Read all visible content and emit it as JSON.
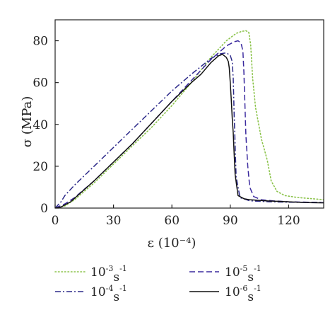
{
  "chart_data": {
    "type": "line",
    "xlabel": "ε (10⁻⁴)",
    "ylabel": "σ (MPa)",
    "xlim": [
      0,
      138
    ],
    "ylim": [
      0,
      90
    ],
    "xticks": [
      0,
      30,
      60,
      90,
      120
    ],
    "yticks": [
      0,
      20,
      40,
      60,
      80
    ],
    "grid": false,
    "legend_placement": "bottom",
    "series": [
      {
        "name": "10⁻³s⁻¹",
        "legend_base": "10",
        "legend_exp1": "-3",
        "legend_mid": "s",
        "legend_exp2": "-1",
        "color": "#8bc34a",
        "dash": "dot",
        "x": [
          0,
          5,
          10,
          20,
          30,
          40,
          50,
          60,
          70,
          80,
          88,
          93,
          96,
          98,
          99.5,
          100.5,
          101.5,
          103,
          106,
          109,
          111,
          114,
          118,
          125,
          132,
          138
        ],
        "y": [
          0,
          1,
          4,
          12,
          21,
          30,
          39,
          49,
          60,
          72,
          80,
          83.5,
          84.5,
          84.8,
          84,
          78,
          62,
          48,
          33,
          23,
          13,
          8,
          6,
          5,
          4.5,
          4
        ]
      },
      {
        "name": "10⁻⁴s⁻¹",
        "legend_base": "10",
        "legend_exp1": "-4",
        "legend_mid": "s",
        "legend_exp2": "-1",
        "color": "#2d2a8a",
        "dash": "dashdot",
        "x": [
          0,
          3,
          5,
          10,
          20,
          30,
          40,
          50,
          60,
          70,
          80,
          85,
          88,
          90,
          91,
          91.5,
          92,
          92.5,
          93,
          95,
          100,
          110,
          120,
          130,
          138
        ],
        "y": [
          0,
          3,
          6,
          11,
          20,
          29,
          38,
          47,
          56,
          64,
          71.5,
          73.8,
          74.2,
          73,
          70,
          62,
          45,
          30,
          15,
          5,
          3.5,
          3,
          2.8,
          2.7,
          2.7
        ]
      },
      {
        "name": "10⁻⁵s⁻¹",
        "legend_base": "10",
        "legend_exp1": "-5",
        "legend_mid": "s",
        "legend_exp2": "-1",
        "color": "#3b2a9e",
        "dash": "dash",
        "x": [
          0,
          5,
          10,
          20,
          30,
          40,
          50,
          60,
          70,
          80,
          88,
          92,
          94,
          95.5,
          96.5,
          97,
          97.5,
          98,
          99,
          100,
          102,
          106,
          112,
          120,
          130,
          138
        ],
        "y": [
          0,
          2,
          5,
          13,
          22,
          31,
          41,
          51,
          61,
          71,
          77.5,
          79.5,
          80,
          79,
          75,
          65,
          50,
          35,
          20,
          10,
          5.5,
          4,
          3.5,
          3,
          2.8,
          2.6
        ]
      },
      {
        "name": "10⁻⁶s⁻¹",
        "legend_base": "10",
        "legend_exp1": "-6",
        "legend_mid": "s",
        "legend_exp2": "-1",
        "color": "#111111",
        "dash": "solid",
        "x": [
          0,
          3,
          8,
          20,
          30,
          40,
          50,
          60,
          70,
          75,
          80,
          84,
          86,
          88,
          89,
          89.5,
          90,
          90.5,
          91,
          91.5,
          92,
          92.5,
          94,
          97,
          100,
          103,
          106,
          110,
          115,
          120,
          125,
          130,
          138
        ],
        "y": [
          0,
          0.5,
          3,
          13,
          22,
          31,
          41,
          51,
          60,
          64,
          69.5,
          72.8,
          73.5,
          72,
          70,
          67,
          60,
          52,
          43,
          36,
          26,
          16,
          6,
          4.5,
          4,
          3.8,
          3.6,
          3.4,
          3.2,
          3,
          2.8,
          2.6,
          2.5
        ]
      }
    ]
  }
}
